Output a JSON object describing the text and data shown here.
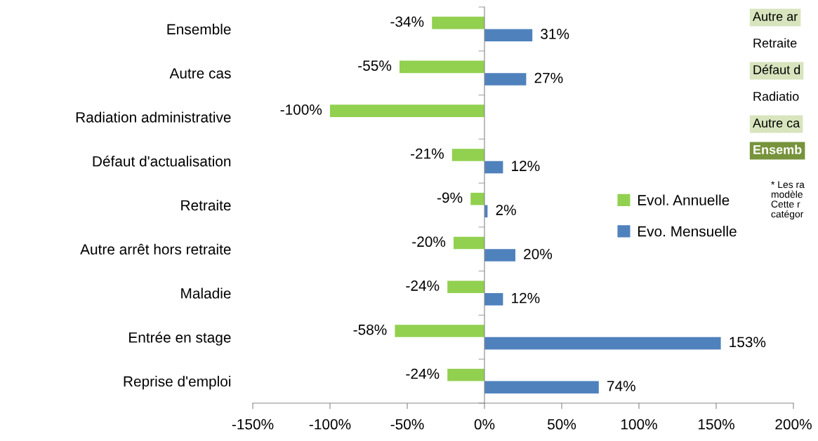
{
  "chart_data": {
    "type": "bar",
    "orientation": "horizontal",
    "categories": [
      "Ensemble",
      "Autre cas",
      "Radiation administrative",
      "Défaut d'actualisation",
      "Retraite",
      "Autre arrêt hors retraite",
      "Maladie",
      "Entrée en stage",
      "Reprise d'emploi"
    ],
    "series": [
      {
        "name": "Evol. Annuelle",
        "color": "#92d050",
        "values": [
          -34,
          -55,
          -100,
          -21,
          -9,
          -20,
          -24,
          -58,
          -24
        ],
        "value_labels": [
          "-34%",
          "-55%",
          "-100%",
          "-21%",
          "-9%",
          "-20%",
          "-24%",
          "-58%",
          "-24%"
        ]
      },
      {
        "name": "Evo. Mensuelle",
        "color": "#4f81bd",
        "values": [
          31,
          27,
          null,
          12,
          2,
          20,
          12,
          153,
          74
        ],
        "value_labels": [
          "31%",
          "27%",
          null,
          "12%",
          "2%",
          "20%",
          "12%",
          "153%",
          "74%"
        ]
      }
    ],
    "xlim": [
      -150,
      200
    ],
    "xticks": [
      {
        "value": -150,
        "label": "-150%"
      },
      {
        "value": -100,
        "label": "-100%"
      },
      {
        "value": -50,
        "label": "-50%"
      },
      {
        "value": 0,
        "label": "0%"
      },
      {
        "value": 50,
        "label": "50%"
      },
      {
        "value": 100,
        "label": "100%"
      },
      {
        "value": 150,
        "label": "150%"
      },
      {
        "value": 200,
        "label": "200%"
      }
    ],
    "legend": "right",
    "annotations": [
      "Autre ar",
      "Retraite",
      "Défaut d",
      "Radiatio",
      "Autre ca",
      "Ensemb",
      "* Les ra\nmodèle\nCette r\ncatégor"
    ]
  }
}
